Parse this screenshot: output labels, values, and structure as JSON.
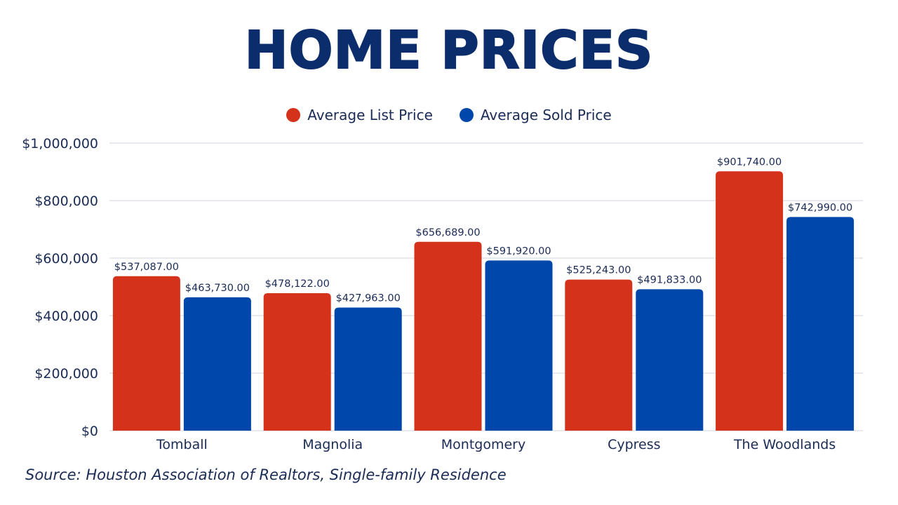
{
  "title": "HOME PRICES",
  "source": "Source: Houston Association of Realtors, Single-family Residence",
  "colors": {
    "list": "#d4321a",
    "sold": "#0047ab",
    "text": "#1a2b56",
    "title": "#0c2d6b",
    "grid": "#d0d4e0"
  },
  "chart_data": {
    "type": "bar",
    "title": "HOME PRICES",
    "xlabel": "",
    "ylabel": "",
    "categories": [
      "Tomball",
      "Magnolia",
      "Montgomery",
      "Cypress",
      "The Woodlands"
    ],
    "series": [
      {
        "name": "Average List Price",
        "values": [
          537087,
          478122,
          656689,
          525243,
          901740
        ],
        "labels": [
          "$537,087.00",
          "$478,122.00",
          "$656,689.00",
          "$525,243.00",
          "$901,740.00"
        ]
      },
      {
        "name": "Average Sold Price",
        "values": [
          463730,
          427963,
          591920,
          491833,
          742990
        ],
        "labels": [
          "$463,730.00",
          "$427,963.00",
          "$591,920.00",
          "$491,833.00",
          "$742,990.00"
        ]
      }
    ],
    "ylim": [
      0,
      1000000
    ],
    "yticks": [
      0,
      200000,
      400000,
      600000,
      800000,
      1000000
    ],
    "ytick_labels": [
      "$0",
      "$200,000",
      "$400,000",
      "$600,000",
      "$800,000",
      "$1,000,000"
    ],
    "grid": true,
    "legend_position": "top-center"
  }
}
